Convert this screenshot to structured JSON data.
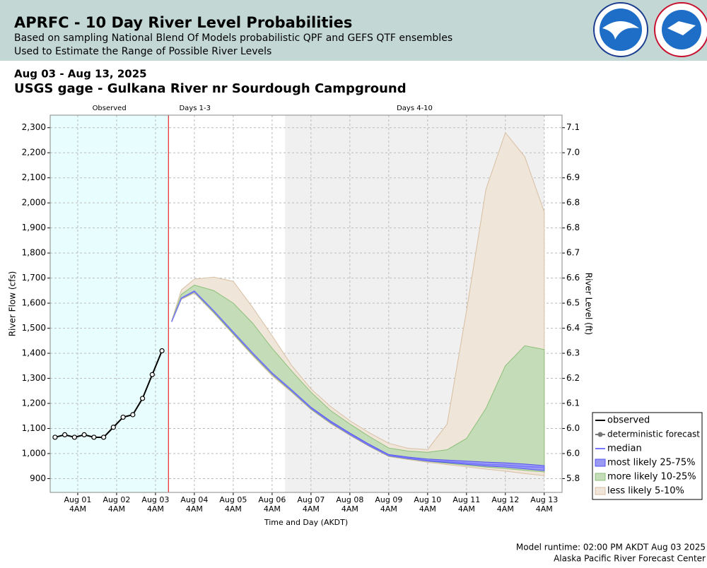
{
  "header": {
    "title": "APRFC - 10 Day River Level Probabilities",
    "subtitle_1": "Based on sampling National Blend Of Models probabilistic QPF and GEFS QTF ensembles",
    "subtitle_2": "Used to Estimate the Range of Possible River Levels"
  },
  "chart_data": {
    "type": "hydrograph",
    "date_range": "Aug 03 - Aug 13, 2025",
    "title": "USGS gage - Gulkana River nr Sourdough Campground",
    "ylabel": "River Flow (cfs)",
    "y2label": "River Level (ft)",
    "xlabel": "Time and Day (AKDT)",
    "ylim": [
      845,
      2350
    ],
    "yticks": [
      {
        "value": 900,
        "label": "900"
      },
      {
        "value": 1000,
        "label": "1,000"
      },
      {
        "value": 1100,
        "label": "1,100"
      },
      {
        "value": 1200,
        "label": "1,200"
      },
      {
        "value": 1300,
        "label": "1,300"
      },
      {
        "value": 1400,
        "label": "1,400"
      },
      {
        "value": 1500,
        "label": "1,500"
      },
      {
        "value": 1600,
        "label": "1,600"
      },
      {
        "value": 1700,
        "label": "1,700"
      },
      {
        "value": 1800,
        "label": "1,800"
      },
      {
        "value": 1900,
        "label": "1,900"
      },
      {
        "value": 2000,
        "label": "2,000"
      },
      {
        "value": 2100,
        "label": "2,100"
      },
      {
        "value": 2200,
        "label": "2,200"
      },
      {
        "value": 2300,
        "label": "2,300"
      }
    ],
    "y2_tick_labels": [
      "5.8",
      "6.0",
      "6.0",
      "6.1",
      "6.2",
      "6.3",
      "6.4",
      "6.5",
      "6.6",
      "6.7",
      "6.8",
      "6.8",
      "6.9",
      "7.0",
      "7.1"
    ],
    "xlim": [
      "2025-07-31T11:00",
      "2025-08-13T15:00"
    ],
    "xticks": [
      {
        "value": "2025-08-01T04:00",
        "label": "Aug 01"
      },
      {
        "value": "2025-08-02T04:00",
        "label": "Aug 02"
      },
      {
        "value": "2025-08-03T04:00",
        "label": "Aug 03"
      },
      {
        "value": "2025-08-04T04:00",
        "label": "Aug 04"
      },
      {
        "value": "2025-08-05T04:00",
        "label": "Aug 05"
      },
      {
        "value": "2025-08-06T04:00",
        "label": "Aug 06"
      },
      {
        "value": "2025-08-07T04:00",
        "label": "Aug 07"
      },
      {
        "value": "2025-08-08T04:00",
        "label": "Aug 08"
      },
      {
        "value": "2025-08-09T04:00",
        "label": "Aug 09"
      },
      {
        "value": "2025-08-10T04:00",
        "label": "Aug 10"
      },
      {
        "value": "2025-08-11T04:00",
        "label": "Aug 11"
      },
      {
        "value": "2025-08-12T04:00",
        "label": "Aug 12"
      },
      {
        "value": "2025-08-13T04:00",
        "label": "Aug 13"
      }
    ],
    "xtick_sublabel": "4AM",
    "grid": true,
    "regions": [
      {
        "name": "Observed",
        "start": "2025-07-31T11:00",
        "end": "2025-08-03T12:00",
        "color": "#e8fdfd"
      },
      {
        "name": "Days 1-3",
        "start": "2025-08-03T12:00",
        "end": "2025-08-06T12:00",
        "color": "#ffffff"
      },
      {
        "name": "Days 4-10",
        "start": "2025-08-06T12:00",
        "end": "2025-08-13T04:00",
        "color": "#f0f0f0"
      }
    ],
    "observed": {
      "name": "observed",
      "color": "#000000",
      "x": [
        "2025-07-31T14:00",
        "2025-07-31T20:00",
        "2025-08-01T02:00",
        "2025-08-01T08:00",
        "2025-08-01T14:00",
        "2025-08-01T20:00",
        "2025-08-02T02:00",
        "2025-08-02T08:00",
        "2025-08-02T14:00",
        "2025-08-02T20:00",
        "2025-08-03T02:00",
        "2025-08-03T08:00"
      ],
      "values": [
        1065,
        1075,
        1065,
        1075,
        1065,
        1065,
        1105,
        1145,
        1155,
        1220,
        1315,
        1410
      ]
    },
    "deterministic": {
      "name": "deterministic forecast",
      "color": "#777777"
    },
    "forecast_x": [
      "2025-08-03T14:00",
      "2025-08-03T20:00",
      "2025-08-04T04:00",
      "2025-08-04T16:00",
      "2025-08-05T04:00",
      "2025-08-05T16:00",
      "2025-08-06T04:00",
      "2025-08-06T16:00",
      "2025-08-07T04:00",
      "2025-08-07T16:00",
      "2025-08-08T04:00",
      "2025-08-08T16:00",
      "2025-08-09T04:00",
      "2025-08-09T16:00",
      "2025-08-10T04:00",
      "2025-08-10T16:00",
      "2025-08-11T04:00",
      "2025-08-11T16:00",
      "2025-08-12T04:00",
      "2025-08-12T16:00",
      "2025-08-13T04:00"
    ],
    "bands": [
      {
        "name": "less likely 5-10%",
        "color": "#efe5d9",
        "edge": "#d8bfa3",
        "low": [
          1525,
          1615,
          1640,
          1560,
          1475,
          1390,
          1310,
          1245,
          1175,
          1120,
          1072,
          1028,
          988,
          976,
          965,
          956,
          947,
          938,
          930,
          920,
          912
        ],
        "high": [
          1530,
          1653,
          1696,
          1704,
          1687,
          1583,
          1470,
          1352,
          1258,
          1188,
          1131,
          1083,
          1041,
          1021,
          1016,
          1117,
          1569,
          2054,
          2280,
          2184,
          1964
        ]
      },
      {
        "name": "more likely 10-25%",
        "color": "#c5dcb8",
        "edge": "#8cc07a",
        "low": [
          1526,
          1618,
          1644,
          1563,
          1478,
          1394,
          1315,
          1248,
          1178,
          1122,
          1075,
          1030,
          990,
          979,
          969,
          961,
          953,
          946,
          940,
          933,
          927
        ],
        "high": [
          1528,
          1635,
          1672,
          1650,
          1600,
          1520,
          1420,
          1330,
          1245,
          1172,
          1118,
          1068,
          1022,
          1010,
          1005,
          1015,
          1060,
          1180,
          1350,
          1430,
          1415
        ]
      },
      {
        "name": "most likely 25-75%",
        "color": "#9a9af5",
        "edge": "#5555ee",
        "low": [
          1526,
          1619,
          1646,
          1567,
          1482,
          1398,
          1318,
          1251,
          1180,
          1124,
          1076,
          1031,
          991,
          980,
          970,
          964,
          957,
          950,
          946,
          939,
          932
        ],
        "high": [
          1526,
          1621,
          1649,
          1570,
          1486,
          1402,
          1322,
          1255,
          1185,
          1130,
          1082,
          1037,
          996,
          986,
          978,
          974,
          970,
          966,
          963,
          958,
          952
        ]
      }
    ],
    "median": {
      "name": "median",
      "color": "#7777ff",
      "values": [
        1526,
        1620,
        1648,
        1569,
        1484,
        1400,
        1320,
        1253,
        1182,
        1126,
        1078,
        1033,
        993,
        982,
        973,
        968,
        962,
        956,
        954,
        948,
        945
      ]
    }
  },
  "footer": {
    "runtime": "Model runtime: 02:00 PM AKDT Aug 03 2025",
    "office": "Alaska Pacific River Forecast Center"
  }
}
